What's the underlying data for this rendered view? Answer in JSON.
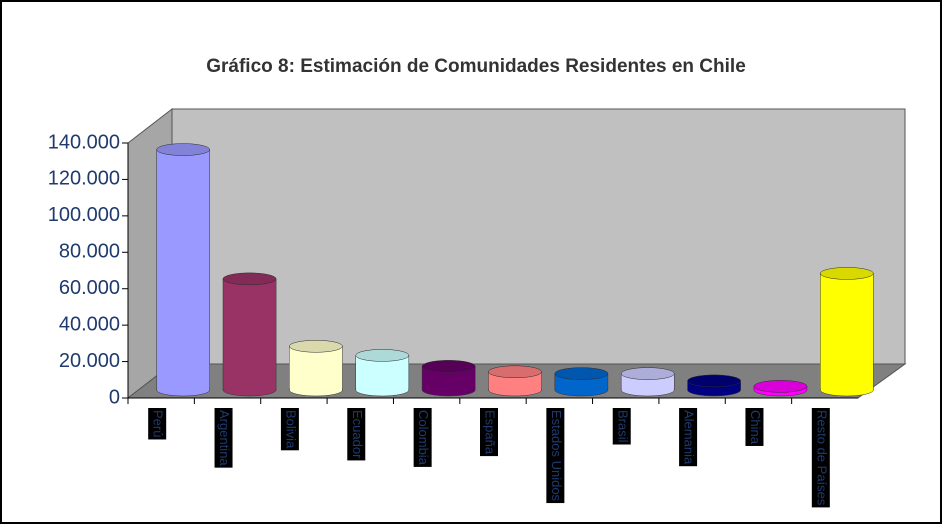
{
  "chart_data": {
    "type": "bar3d",
    "title": "Gráfico 8: Estimación de Comunidades Residentes en Chile",
    "categories": [
      "Perú",
      "Argentina",
      "Bolivia",
      "Ecuador",
      "Colombia",
      "España",
      "Estados Unidos",
      "Brasil",
      "Alemania",
      "China",
      "Resto de Países"
    ],
    "values": [
      132000,
      61000,
      24000,
      19000,
      13000,
      10000,
      9000,
      9000,
      5000,
      2000,
      64000
    ],
    "colors": [
      "#9999ff",
      "#993366",
      "#ffffcc",
      "#ccffff",
      "#660066",
      "#ff8080",
      "#0066cc",
      "#ccccff",
      "#000080",
      "#ff00ff",
      "#ffff00"
    ],
    "ylim": [
      0,
      140000
    ],
    "yticks": [
      {
        "value": 0,
        "label": "0"
      },
      {
        "value": 20000,
        "label": "20.000"
      },
      {
        "value": 40000,
        "label": "40.000"
      },
      {
        "value": 60000,
        "label": "60.000"
      },
      {
        "value": 80000,
        "label": "80.000"
      },
      {
        "value": 100000,
        "label": "100.000"
      },
      {
        "value": 120000,
        "label": "120.000"
      },
      {
        "value": 140000,
        "label": "140.000"
      }
    ]
  }
}
